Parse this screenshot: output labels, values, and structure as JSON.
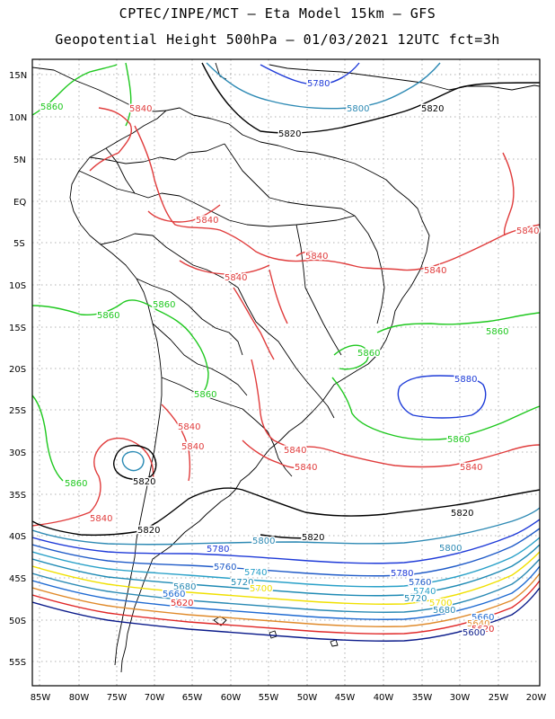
{
  "header": {
    "line1": "CPTEC/INPE/MCT  –   Eta Model 15km  –  GFS",
    "line2": "Geopotential Height 500hPa  –  01/03/2021 12UTC fct=3h"
  },
  "axes": {
    "lat_labels": [
      "15N",
      "10N",
      "5N",
      "EQ",
      "5S",
      "10S",
      "15S",
      "20S",
      "25S",
      "30S",
      "35S",
      "40S",
      "45S",
      "50S",
      "55S"
    ],
    "lon_labels": [
      "85W",
      "80W",
      "75W",
      "70W",
      "65W",
      "60W",
      "55W",
      "50W",
      "45W",
      "40W",
      "35W",
      "30W",
      "25W",
      "20W"
    ]
  },
  "colors": {
    "c5580": "#000080",
    "c5600": "#0a1a8a",
    "c5620": "#e02828",
    "c5640": "#e08a2a",
    "c5660": "#1e6ad2",
    "c5680": "#2a8ab4",
    "c5700": "#f0e000",
    "c5720": "#1e8ab4",
    "c5740": "#28a0c8",
    "c5760": "#1e5ac8",
    "c5780": "#1e3ad8",
    "c5800": "#2e8ab4",
    "c5820": "#000000",
    "c5840": "#e03c3c",
    "c5860": "#1ec81e",
    "c5880": "#1e3cd8",
    "coast": "#000000",
    "grid": "#999999"
  },
  "contour_labels": [
    {
      "text": "5780",
      "color": "c5780"
    },
    {
      "text": "5800",
      "color": "c5800"
    },
    {
      "text": "5820",
      "color": "c5820"
    },
    {
      "text": "5860",
      "color": "c5860"
    },
    {
      "text": "5840",
      "color": "c5840"
    },
    {
      "text": "5820",
      "color": "c5820"
    },
    {
      "text": "5840",
      "color": "c5840"
    },
    {
      "text": "5840",
      "color": "c5840"
    },
    {
      "text": "5840",
      "color": "c5840"
    },
    {
      "text": "5840",
      "color": "c5840"
    },
    {
      "text": "5840",
      "color": "c5840"
    },
    {
      "text": "5860",
      "color": "c5860"
    },
    {
      "text": "5860",
      "color": "c5860"
    },
    {
      "text": "5860",
      "color": "c5860"
    },
    {
      "text": "5860",
      "color": "c5860"
    },
    {
      "text": "5860",
      "color": "c5860"
    },
    {
      "text": "5880",
      "color": "c5880"
    },
    {
      "text": "5860",
      "color": "c5860"
    },
    {
      "text": "5840",
      "color": "c5840"
    },
    {
      "text": "5840",
      "color": "c5840"
    },
    {
      "text": "5840",
      "color": "c5840"
    },
    {
      "text": "5840",
      "color": "c5840"
    },
    {
      "text": "5840",
      "color": "c5840"
    },
    {
      "text": "5820",
      "color": "c5820"
    },
    {
      "text": "5860",
      "color": "c5860"
    },
    {
      "text": "5840",
      "color": "c5840"
    },
    {
      "text": "5820",
      "color": "c5820"
    },
    {
      "text": "5820",
      "color": "c5820"
    },
    {
      "text": "5820",
      "color": "c5820"
    },
    {
      "text": "5800",
      "color": "c5800"
    },
    {
      "text": "5780",
      "color": "c5780"
    },
    {
      "text": "5760",
      "color": "c5760"
    },
    {
      "text": "5740",
      "color": "c5740"
    },
    {
      "text": "5720",
      "color": "c5720"
    },
    {
      "text": "5700",
      "color": "c5700"
    },
    {
      "text": "5680",
      "color": "c5680"
    },
    {
      "text": "5660",
      "color": "c5660"
    },
    {
      "text": "5620",
      "color": "c5620"
    },
    {
      "text": "5800",
      "color": "c5800"
    },
    {
      "text": "5780",
      "color": "c5780"
    },
    {
      "text": "5760",
      "color": "c5760"
    },
    {
      "text": "5740",
      "color": "c5740"
    },
    {
      "text": "5720",
      "color": "c5720"
    },
    {
      "text": "5700",
      "color": "c5700"
    },
    {
      "text": "5680",
      "color": "c5680"
    },
    {
      "text": "5660",
      "color": "c5660"
    },
    {
      "text": "5640",
      "color": "c5640"
    },
    {
      "text": "5620",
      "color": "c5620"
    },
    {
      "text": "5600",
      "color": "c5600"
    }
  ]
}
